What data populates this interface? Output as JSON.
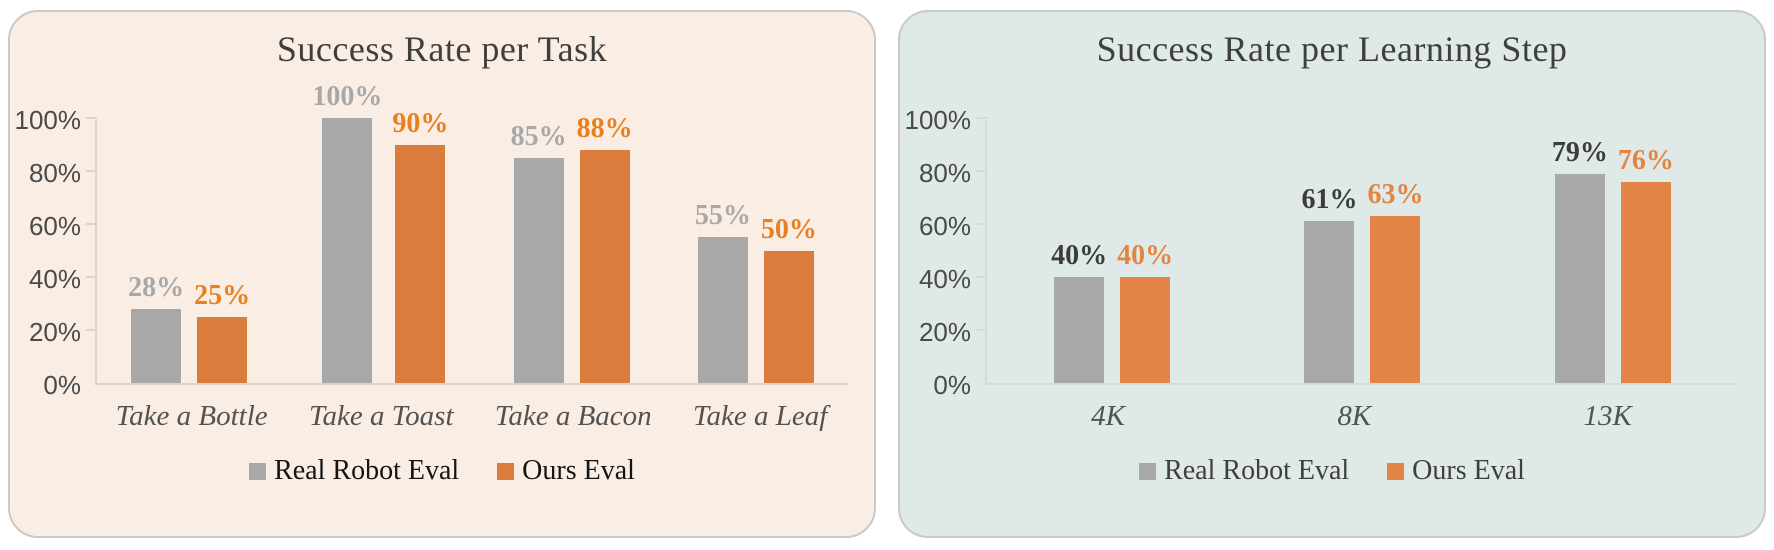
{
  "page": {
    "background": "#ffffff"
  },
  "chart_data": [
    {
      "type": "bar",
      "title": "Success Rate per Task",
      "categories": [
        "Take a Bottle",
        "Take a Toast",
        "Take a Bacon",
        "Take a Leaf"
      ],
      "series": [
        {
          "name": "Real Robot Eval",
          "values": [
            28,
            100,
            85,
            55
          ],
          "color": "#a8a8a8",
          "label_color": "#a8a8a8"
        },
        {
          "name": "Ours Eval",
          "values": [
            25,
            90,
            88,
            50
          ],
          "color": "#d97c3c",
          "label_color": "#e8801f"
        }
      ],
      "value_suffix": "%",
      "ylim": [
        0,
        100
      ],
      "ytick_step": 20,
      "yticks": [
        "0%",
        "20%",
        "40%",
        "60%",
        "80%",
        "100%"
      ],
      "legend": [
        "Real Robot Eval",
        "Ours Eval"
      ],
      "legend_position": "bottom",
      "grid": false,
      "panel_background": "#faeee4",
      "panel_border": "#c9c9c9",
      "axis_color": "#d8d4ce",
      "title_color": "#3f3f3f",
      "tick_label_color": "#4a4a4a",
      "category_label_color": "#525252",
      "legend_text_color": "#141414"
    },
    {
      "type": "bar",
      "title": "Success Rate per Learning Step",
      "categories": [
        "4K",
        "8K",
        "13K"
      ],
      "series": [
        {
          "name": "Real Robot Eval",
          "values": [
            40,
            61,
            79
          ],
          "color": "#a8a8a8",
          "label_color": "#3c3c3c"
        },
        {
          "name": "Ours Eval",
          "values": [
            40,
            63,
            76
          ],
          "color": "#e28443",
          "label_color": "#e28443"
        }
      ],
      "value_suffix": "%",
      "ylim": [
        0,
        100
      ],
      "ytick_step": 20,
      "yticks": [
        "0%",
        "20%",
        "40%",
        "60%",
        "80%",
        "100%"
      ],
      "legend": [
        "Real Robot Eval",
        "Ours Eval"
      ],
      "legend_position": "bottom",
      "grid": false,
      "panel_background": "#dfe9e7",
      "panel_border": "#c9c9c9",
      "axis_color": "#d2dbd8",
      "title_color": "#3f3f3f",
      "tick_label_color": "#4a4a4a",
      "category_label_color": "#525252",
      "legend_text_color": "#3f3f3f"
    }
  ]
}
